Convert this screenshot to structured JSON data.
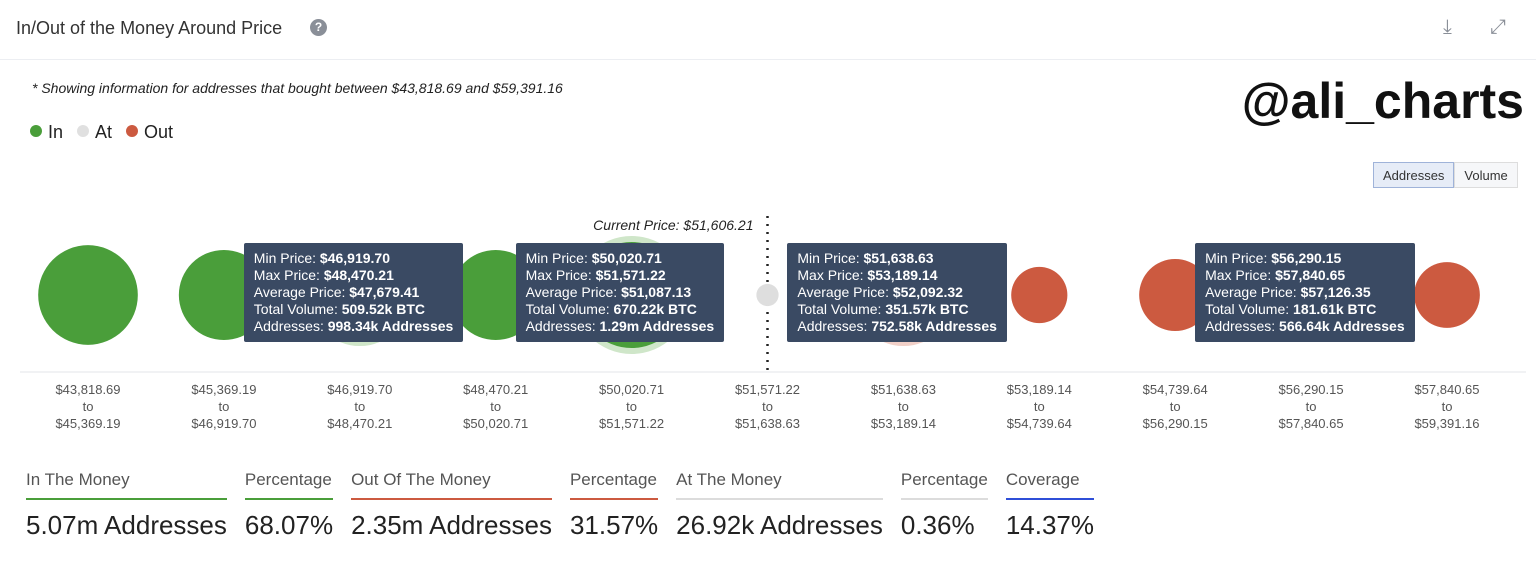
{
  "header": {
    "title": "In/Out of the Money Around Price",
    "help_icon": "question-circle-icon",
    "download_icon": "download-icon",
    "expand_icon": "expand-icon"
  },
  "note": "* Showing information for addresses that bought between $43,818.69 and $59,391.16",
  "watermark": "@ali_charts",
  "legend": [
    {
      "label": "In",
      "color": "#4a9e3a"
    },
    {
      "label": "At",
      "color": "#e0e0e0"
    },
    {
      "label": "Out",
      "color": "#cc5a40"
    }
  ],
  "toggle": {
    "options": [
      "Addresses",
      "Volume"
    ],
    "selected": "Addresses"
  },
  "chart_data": {
    "type": "bubble",
    "current_price_label": "Current Price: $51,606.21",
    "buckets": [
      {
        "from": "$43,818.69",
        "to": "$45,369.19",
        "status": "In",
        "relative_size": 0.94
      },
      {
        "from": "$45,369.19",
        "to": "$46,919.70",
        "status": "In",
        "relative_size": 0.85
      },
      {
        "from": "$46,919.70",
        "to": "$48,470.21",
        "status": "In",
        "relative_size": 0.85,
        "highlighted": true
      },
      {
        "from": "$48,470.21",
        "to": "$50,020.71",
        "status": "In",
        "relative_size": 0.85
      },
      {
        "from": "$50,020.71",
        "to": "$51,571.22",
        "status": "In",
        "relative_size": 1.0,
        "highlighted": true
      },
      {
        "from": "$51,571.22",
        "to": "$51,638.63",
        "status": "At",
        "relative_size": 0.21
      },
      {
        "from": "$51,638.63",
        "to": "$53,189.14",
        "status": "Out",
        "relative_size": 0.85,
        "highlighted": true
      },
      {
        "from": "$53,189.14",
        "to": "$54,739.64",
        "status": "Out",
        "relative_size": 0.53
      },
      {
        "from": "$54,739.64",
        "to": "$56,290.15",
        "status": "Out",
        "relative_size": 0.68
      },
      {
        "from": "$56,290.15",
        "to": "$57,840.65",
        "status": "Out",
        "relative_size": 0.75,
        "highlighted": true
      },
      {
        "from": "$57,840.65",
        "to": "$59,391.16",
        "status": "Out",
        "relative_size": 0.62
      }
    ],
    "to_word": "to"
  },
  "tooltips": [
    {
      "bucket": 2,
      "min": "$46,919.70",
      "max": "$48,470.21",
      "avg": "$47,679.41",
      "volume": "509.52k BTC",
      "addresses": "998.34k Addresses"
    },
    {
      "bucket": 4,
      "min": "$50,020.71",
      "max": "$51,571.22",
      "avg": "$51,087.13",
      "volume": "670.22k BTC",
      "addresses": "1.29m Addresses"
    },
    {
      "bucket": 6,
      "min": "$51,638.63",
      "max": "$53,189.14",
      "avg": "$52,092.32",
      "volume": "351.57k BTC",
      "addresses": "752.58k Addresses"
    },
    {
      "bucket": 9,
      "min": "$56,290.15",
      "max": "$57,840.65",
      "avg": "$57,126.35",
      "volume": "181.61k BTC",
      "addresses": "566.64k Addresses"
    }
  ],
  "tooltip_labels": {
    "min": "Min Price: ",
    "max": "Max Price: ",
    "avg": "Average Price: ",
    "volume": "Total Volume: ",
    "addresses": "Addresses: "
  },
  "stats": [
    {
      "label": "In The Money",
      "value": "5.07m Addresses",
      "color": "#4a9e3a"
    },
    {
      "label": "Percentage",
      "value": "68.07%",
      "color": "#4a9e3a"
    },
    {
      "label": "Out Of The Money",
      "value": "2.35m Addresses",
      "color": "#cc5a40"
    },
    {
      "label": "Percentage",
      "value": "31.57%",
      "color": "#cc5a40"
    },
    {
      "label": "At The Money",
      "value": "26.92k Addresses",
      "color": "#dcdcdc"
    },
    {
      "label": "Percentage",
      "value": "0.36%",
      "color": "#dcdcdc"
    },
    {
      "label": "Coverage",
      "value": "14.37%",
      "color": "#2f4fd8"
    }
  ]
}
